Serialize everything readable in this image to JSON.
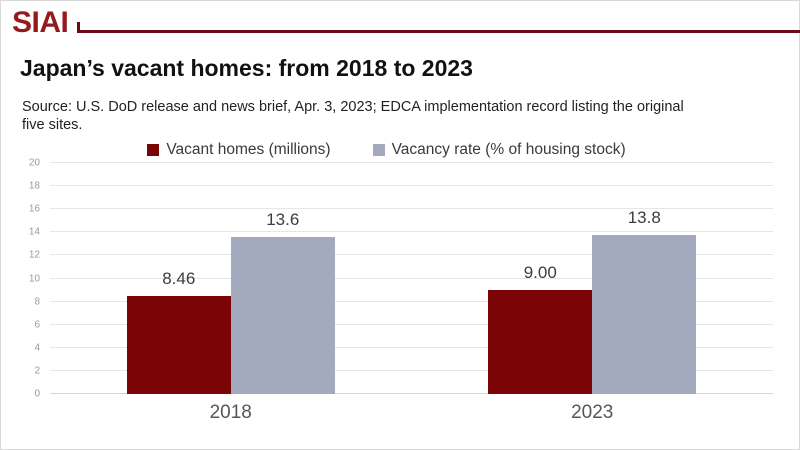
{
  "brand": {
    "logo_text": "SIAI",
    "logo_color": "#941a1d",
    "rule_color": "#6e0b0e"
  },
  "header": {
    "title": "Japan’s vacant homes: from 2018 to 2023",
    "source": "Source: U.S. DoD release and news brief, Apr. 3, 2023; EDCA implementation record listing the original five sites."
  },
  "chart_data": {
    "type": "bar",
    "categories": [
      "2018",
      "2023"
    ],
    "series": [
      {
        "name": "Vacant homes (millions)",
        "color": "#7b0407",
        "values": [
          8.46,
          9.0
        ],
        "labels": [
          "8.46",
          "9.00"
        ]
      },
      {
        "name": "Vacancy rate (% of housing stock)",
        "color": "#a3aabd",
        "values": [
          13.6,
          13.8
        ],
        "labels": [
          "13.6",
          "13.8"
        ]
      }
    ],
    "ylim": [
      0,
      20
    ],
    "ytick_step": 2,
    "grid": true,
    "legend_position": "top",
    "group_centers_pct": [
      25,
      75
    ]
  }
}
